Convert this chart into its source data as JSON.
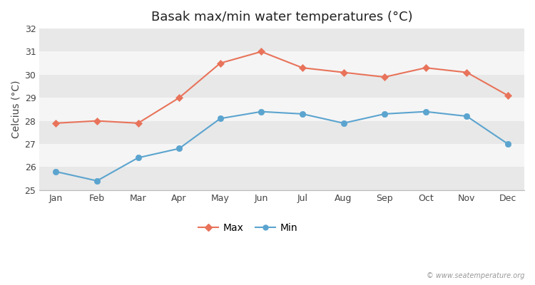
{
  "title": "Basak max/min water temperatures (°C)",
  "ylabel": "Celcius (°C)",
  "months": [
    "Jan",
    "Feb",
    "Mar",
    "Apr",
    "May",
    "Jun",
    "Jul",
    "Aug",
    "Sep",
    "Oct",
    "Nov",
    "Dec"
  ],
  "max_temps": [
    27.9,
    28.0,
    27.9,
    29.0,
    30.5,
    31.0,
    30.3,
    30.1,
    29.9,
    30.3,
    30.1,
    29.1
  ],
  "min_temps": [
    25.8,
    25.4,
    26.4,
    26.8,
    28.1,
    28.4,
    28.3,
    27.9,
    28.3,
    28.4,
    28.2,
    27.0
  ],
  "max_color": "#e8735a",
  "min_color": "#5ba4cf",
  "bg_color": "#ffffff",
  "band_light": "#f5f5f5",
  "band_dark": "#e8e8e8",
  "ylim": [
    25,
    32
  ],
  "yticks": [
    25,
    26,
    27,
    28,
    29,
    30,
    31,
    32
  ],
  "title_fontsize": 13,
  "label_fontsize": 10,
  "tick_fontsize": 9,
  "watermark": "© www.seatemperature.org",
  "legend_labels": [
    "Max",
    "Min"
  ]
}
